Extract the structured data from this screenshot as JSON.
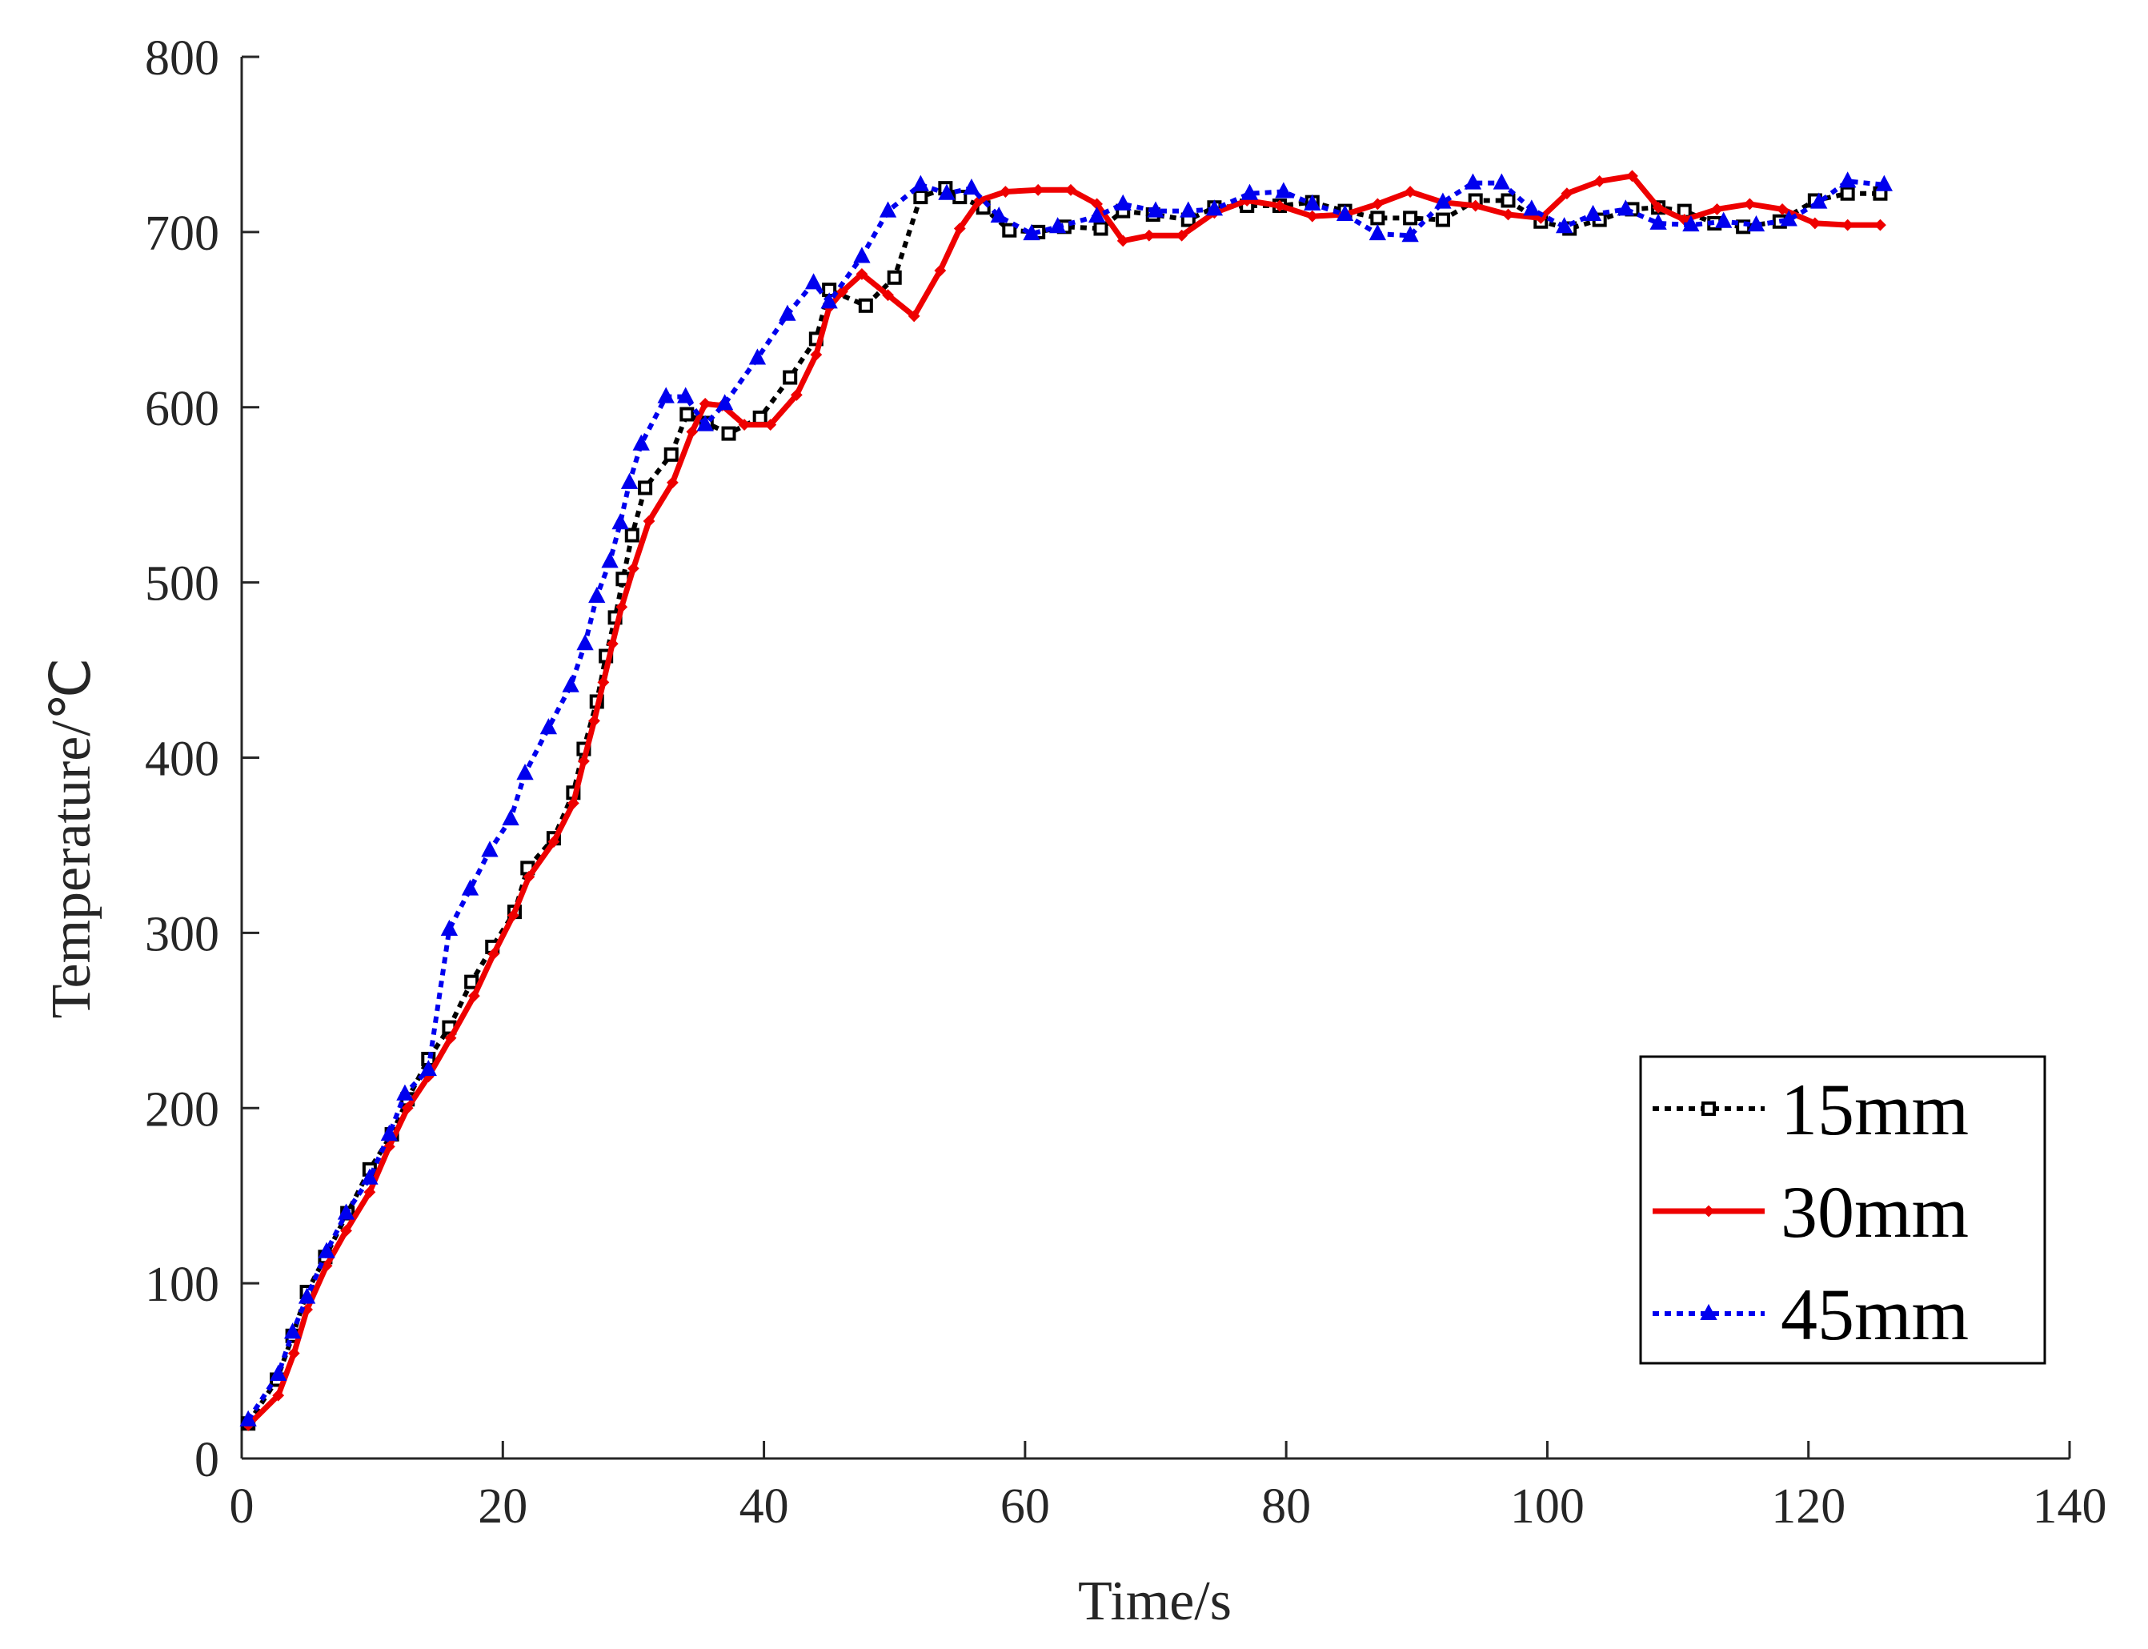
{
  "chart_data": {
    "type": "line",
    "title": "",
    "xlabel": "Time/s",
    "ylabel": "Temperature/℃",
    "xlim": [
      0,
      140
    ],
    "ylim": [
      0,
      800
    ],
    "xticks": [
      "0",
      "20",
      "40",
      "60",
      "80",
      "100",
      "120",
      "140"
    ],
    "yticks": [
      "0",
      "100",
      "200",
      "300",
      "400",
      "500",
      "600",
      "700",
      "800"
    ],
    "grid": false,
    "legend_position": "bottom-right",
    "series": [
      {
        "name": "15mm",
        "color": "#000000",
        "line_style": "dotted",
        "marker": "square",
        "x": [
          0.5,
          2.7,
          3.9,
          5,
          6.4,
          8.1,
          9.8,
          11.5,
          12.7,
          14.3,
          15.9,
          17.6,
          19.2,
          20.9,
          21.9,
          23.9,
          25.4,
          26.2,
          27.2,
          27.9,
          28.6,
          29.2,
          29.9,
          30.9,
          32.9,
          34.1,
          35.6,
          37.3,
          39.7,
          42,
          44,
          45,
          47.8,
          50,
          52,
          53.9,
          55,
          56.8,
          58.8,
          61,
          63,
          65.8,
          67.5,
          69.8,
          72.5,
          74.5,
          77,
          79.5,
          82,
          84.5,
          87,
          89.5,
          92,
          94.5,
          97,
          99.5,
          101.7,
          104,
          106.5,
          108.5,
          110.5,
          112.8,
          115,
          117.8,
          120.5,
          123,
          125.5
        ],
        "y": [
          20,
          45,
          70,
          95,
          115,
          140,
          165,
          185,
          205,
          228,
          246,
          272,
          292,
          312,
          337,
          354,
          380,
          405,
          432,
          458,
          480,
          502,
          527,
          554,
          573,
          596,
          591,
          585,
          594,
          617,
          639,
          667,
          658,
          674,
          720,
          725,
          720,
          714,
          701,
          700,
          703,
          702,
          712,
          710,
          707,
          714,
          715,
          715,
          717,
          712,
          708,
          708,
          707,
          718,
          718,
          706,
          702,
          707,
          713,
          714,
          712,
          705,
          703,
          706,
          718,
          722,
          722
        ]
      },
      {
        "name": "30mm",
        "color": "#ee0000",
        "line_style": "solid",
        "marker": "diamond",
        "x": [
          0.5,
          2.8,
          4,
          5,
          6.5,
          8,
          9.8,
          11.3,
          12.7,
          14.3,
          16,
          17.8,
          19.3,
          20.8,
          22,
          23.9,
          25.4,
          26.2,
          27,
          27.7,
          28.4,
          29.1,
          30,
          31.2,
          33,
          34.5,
          35.5,
          36.8,
          38.5,
          40.5,
          42.5,
          44,
          45,
          46,
          47.5,
          49.5,
          51.5,
          53.5,
          55,
          56.5,
          58.5,
          61,
          63.5,
          65.5,
          67.5,
          69.5,
          72,
          74.5,
          77,
          79.5,
          82,
          84.5,
          87,
          89.5,
          92,
          94.5,
          97,
          99.5,
          101.5,
          104,
          106.5,
          108.5,
          110.5,
          113,
          115.5,
          118,
          120.5,
          123,
          125.5
        ],
        "y": [
          19,
          36,
          60,
          85,
          110,
          130,
          152,
          178,
          200,
          218,
          240,
          264,
          288,
          310,
          332,
          352,
          374,
          398,
          421,
          443,
          465,
          486,
          508,
          535,
          557,
          586,
          602,
          601,
          590,
          590,
          607,
          630,
          657,
          666,
          676,
          664,
          652,
          678,
          702,
          718,
          723,
          724,
          724,
          716,
          695,
          698,
          698,
          711,
          718,
          715,
          709,
          710,
          716,
          723,
          717,
          715,
          710,
          708,
          722,
          729,
          732,
          714,
          707,
          713,
          716,
          713,
          705,
          704,
          704
        ]
      },
      {
        "name": "45mm",
        "color": "#0000ee",
        "line_style": "dotted",
        "marker": "triangle",
        "x": [
          0.5,
          2.8,
          3.9,
          5,
          6.5,
          8,
          9.8,
          11.3,
          12.5,
          14.3,
          15.9,
          17.5,
          19,
          20.6,
          21.7,
          23.5,
          25.2,
          26.3,
          27.2,
          28.2,
          29,
          29.7,
          30.6,
          32.5,
          34,
          35.5,
          37,
          39.5,
          41.8,
          43.8,
          45,
          47.5,
          49.5,
          52,
          54,
          55.9,
          58,
          60.5,
          62.5,
          65.5,
          67.5,
          70,
          72.5,
          74.5,
          77.2,
          79.8,
          82,
          84.5,
          87,
          89.5,
          92,
          94.3,
          96.5,
          98.8,
          101.3,
          103.5,
          106,
          108.5,
          111,
          113.5,
          116,
          118.5,
          120.8,
          123,
          125.8
        ],
        "y": [
          22,
          48,
          72,
          92,
          118,
          140,
          160,
          185,
          208,
          222,
          302,
          325,
          347,
          365,
          391,
          417,
          441,
          465,
          492,
          512,
          534,
          557,
          579,
          606,
          606,
          590,
          602,
          628,
          653,
          671,
          660,
          686,
          712,
          727,
          722,
          725,
          709,
          699,
          703,
          709,
          716,
          712,
          712,
          713,
          722,
          723,
          716,
          710,
          699,
          698,
          717,
          728,
          728,
          713,
          703,
          710,
          713,
          705,
          704,
          706,
          704,
          707,
          717,
          729,
          727
        ]
      }
    ]
  }
}
